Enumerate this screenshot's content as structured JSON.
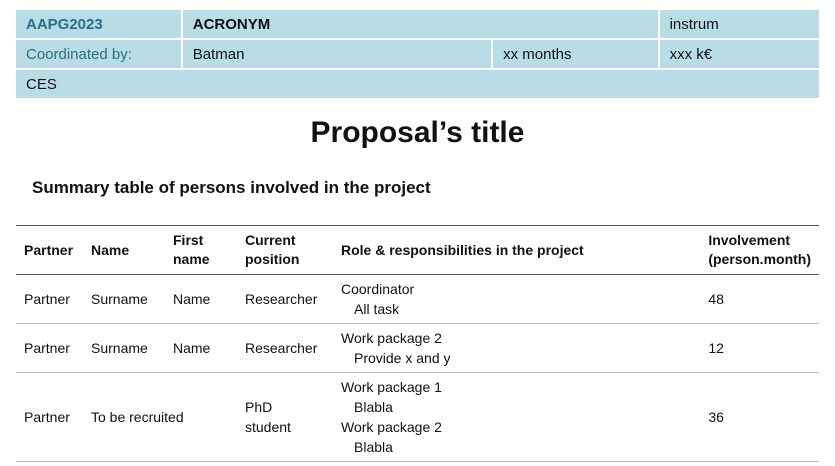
{
  "header": {
    "code": "AAPG2023",
    "acronym": "ACRONYM",
    "instrument": "instrum",
    "coordinated_label": "Coordinated by:",
    "coordinator": "Batman",
    "duration": "xx months",
    "budget": "xxx k€",
    "panel": "CES"
  },
  "title": "Proposal’s title",
  "subtitle": "Summary table of persons involved in the project",
  "table": {
    "columns": {
      "partner": "Partner",
      "name": "Name",
      "first_name_1": "First",
      "first_name_2": "name",
      "position_1": "Current",
      "position_2": "position",
      "role": "Role & responsibilities in the project",
      "involvement_1": "Involvement",
      "involvement_2": "(person.month)"
    },
    "rows": [
      {
        "partner": "Partner",
        "name": "Surname",
        "first_name": "Name",
        "position": "Researcher",
        "role_1": "Coordinator",
        "role_1_task": "All task",
        "involvement": "48"
      },
      {
        "partner": "Partner",
        "name": "Surname",
        "first_name": "Name",
        "position": "Researcher",
        "role_1": "Work package 2",
        "role_1_task": "Provide x and y",
        "involvement": "12"
      },
      {
        "partner": "Partner",
        "name": "To be recruited",
        "position_1": "PhD",
        "position_2": "student",
        "role_1": "Work package 1",
        "role_1_task": "Blabla",
        "role_2": "Work package 2",
        "role_2_task": "Blabla",
        "involvement": "36"
      }
    ]
  }
}
